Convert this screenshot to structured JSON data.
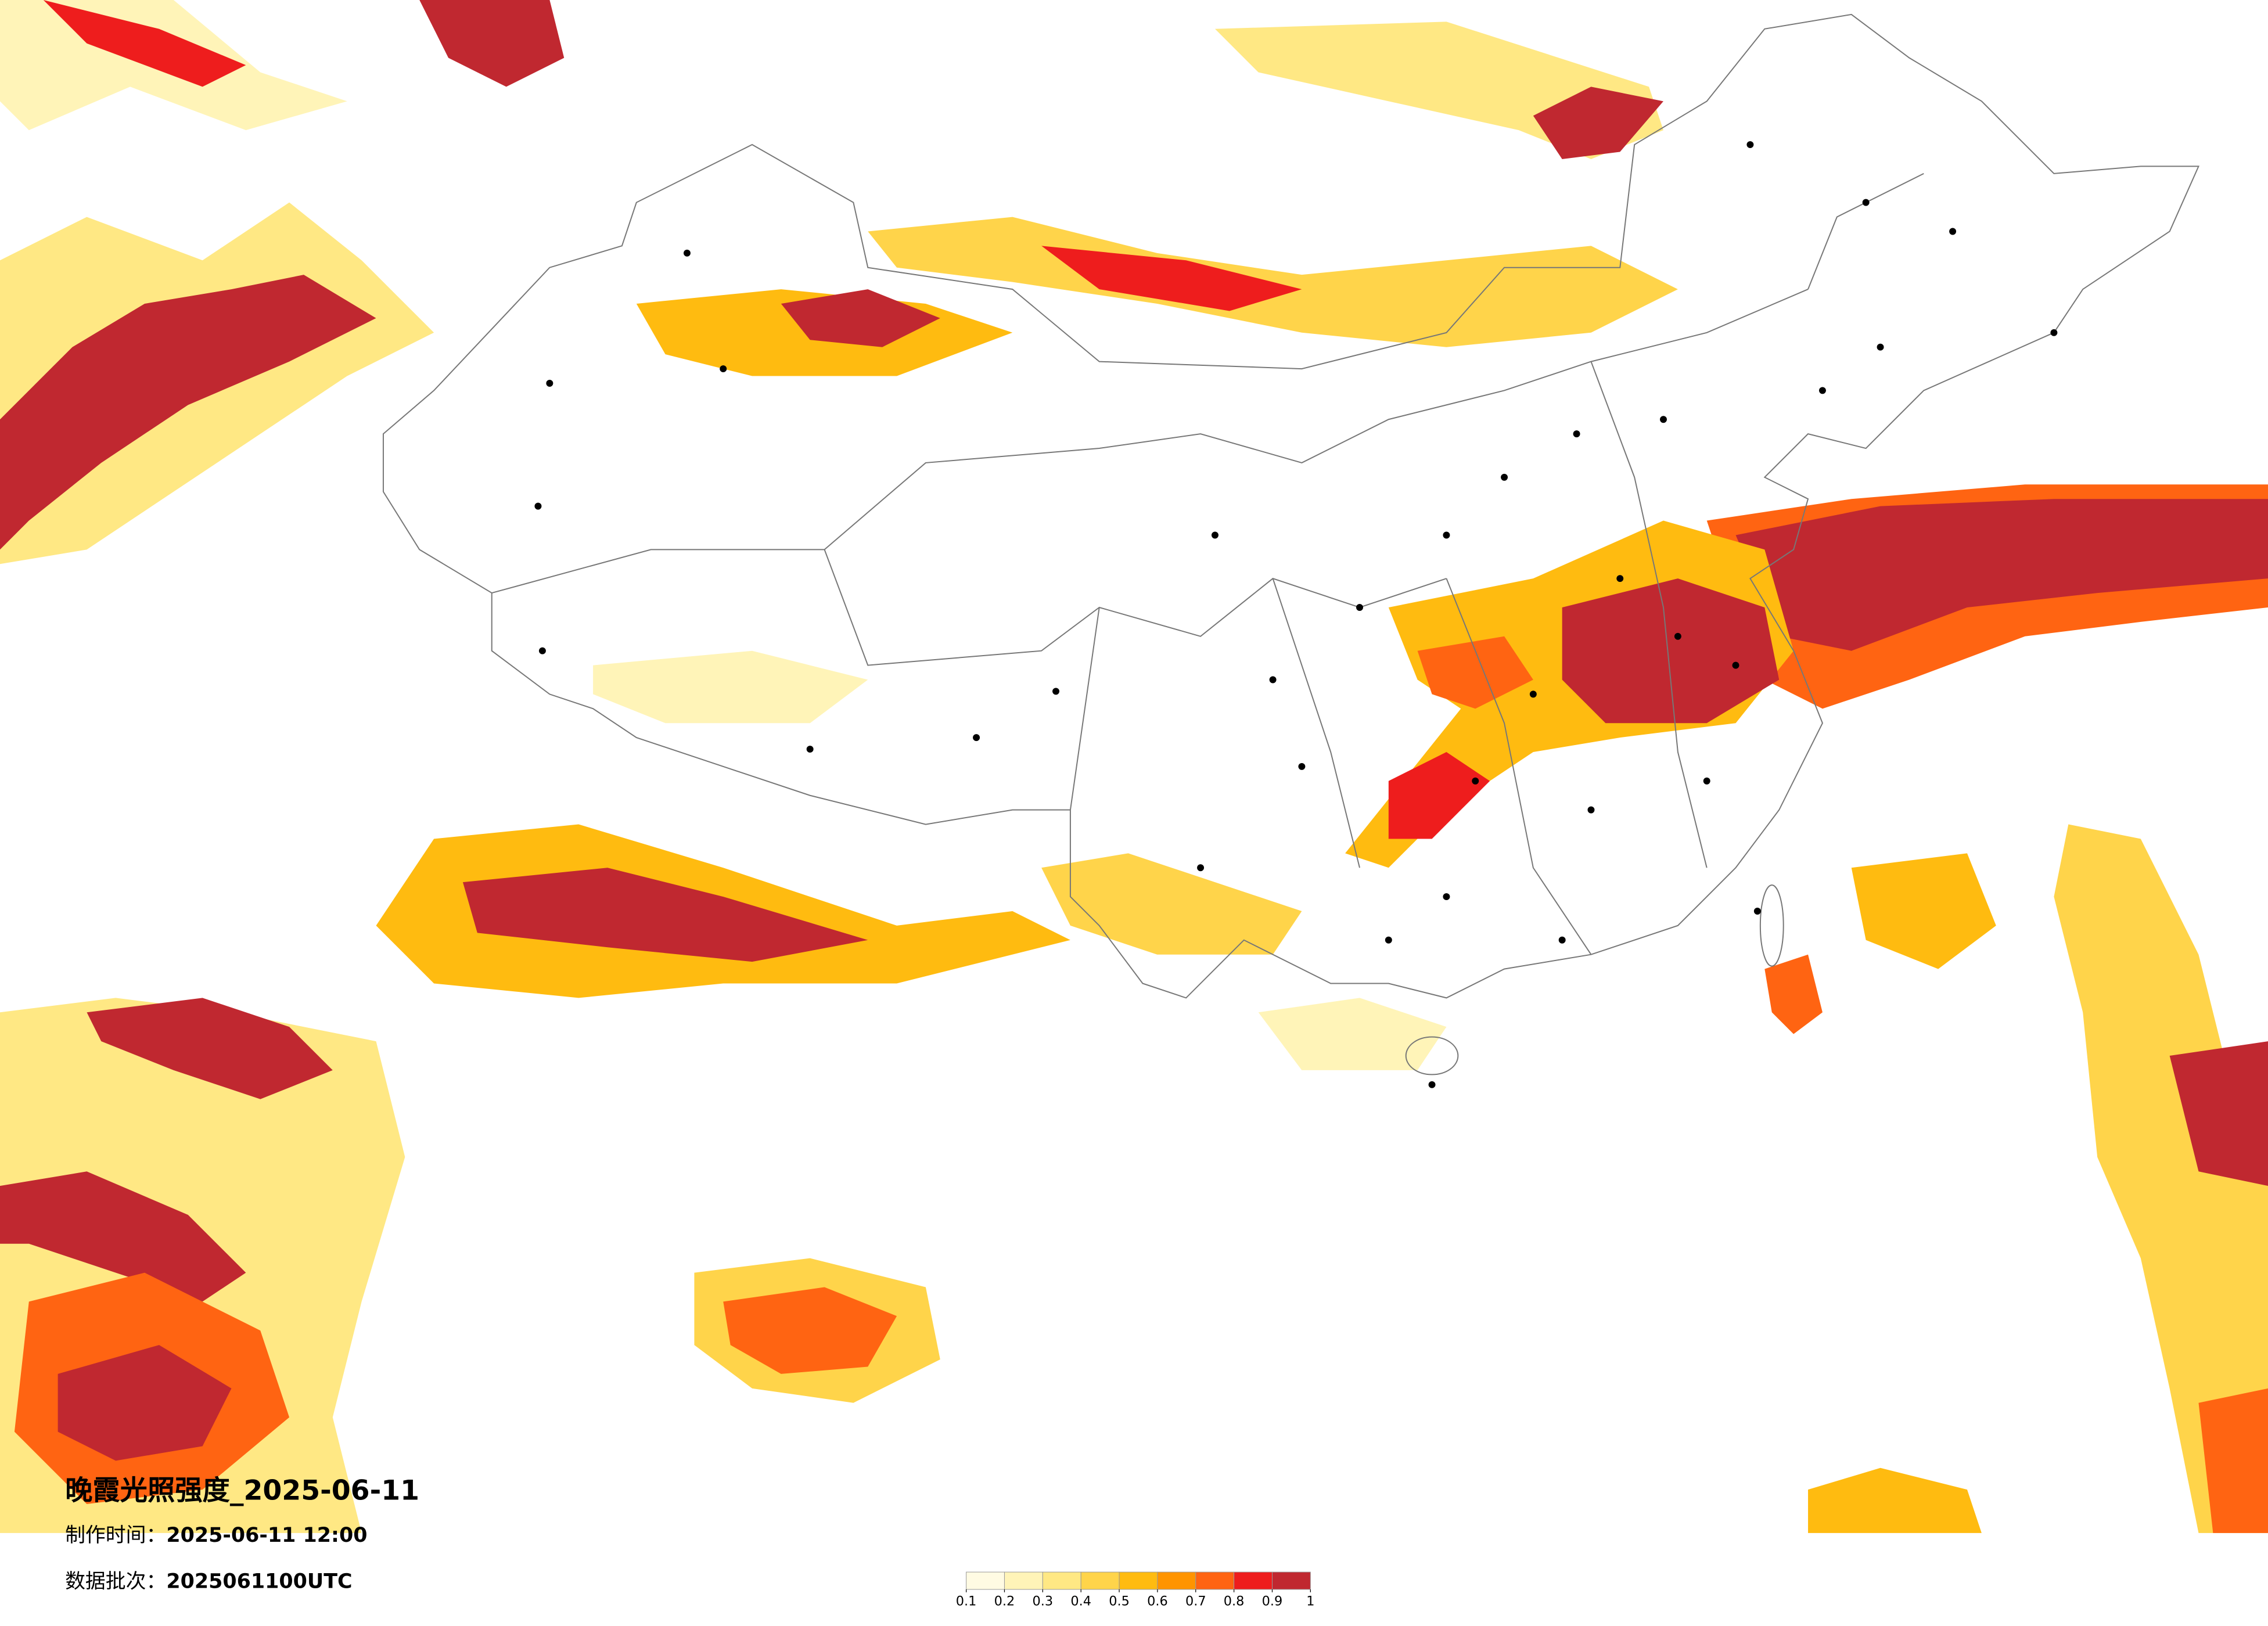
{
  "title": "晚霞光照强度_2025-06-11",
  "made_time": {
    "label": "制作时间：",
    "value": "2025-06-11 12:00"
  },
  "batch": {
    "label": "数据批次：",
    "value": "2025061100UTC"
  },
  "legend": {
    "ticks": [
      0.1,
      0.2,
      0.3,
      0.4,
      0.5,
      0.6,
      0.7,
      0.8,
      0.9,
      1
    ],
    "colors": [
      "#fffbe3",
      "#fff4b8",
      "#ffe884",
      "#ffd44a",
      "#ffbb10",
      "#ff9400",
      "#ff6412",
      "#ee1d1d",
      "#c02830"
    ]
  }
}
